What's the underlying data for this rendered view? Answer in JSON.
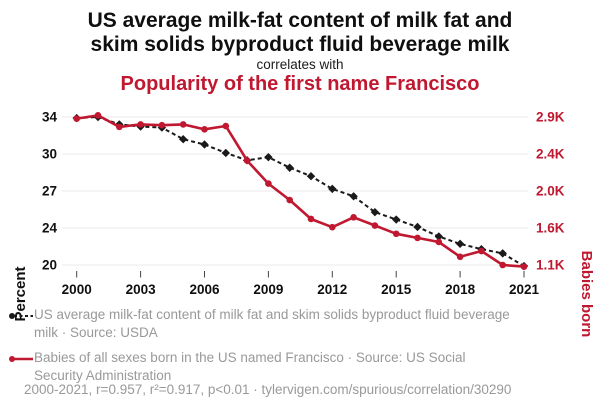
{
  "header": {
    "title": "US average milk-fat content of milk fat and\nskim solids byproduct fluid beverage milk",
    "connector": "correlates with",
    "subtitle": "Popularity of the first name Francisco"
  },
  "colors": {
    "accent_red": "#c01830",
    "text_black": "#0f0f0f",
    "text_gray": "#999999",
    "gridline": "#e8e8e8",
    "tick": "#444444"
  },
  "chart_data": {
    "type": "line",
    "x": [
      2000,
      2001,
      2002,
      2003,
      2004,
      2005,
      2006,
      2007,
      2008,
      2009,
      2010,
      2011,
      2012,
      2013,
      2014,
      2015,
      2016,
      2017,
      2018,
      2019,
      2020,
      2021
    ],
    "x_ticks": [
      2000,
      2003,
      2006,
      2009,
      2012,
      2015,
      2018,
      2021
    ],
    "x_tick_labels": [
      "2000",
      "2003",
      "2006",
      "2009",
      "2012",
      "2015",
      "2018",
      "2021"
    ],
    "grid": "horizontal-only",
    "left_axis": {
      "label": "Percent",
      "tick_labels": [
        "34",
        "30",
        "27",
        "24",
        "20"
      ],
      "max": 34,
      "min": 20,
      "color": "#111111"
    },
    "right_axis": {
      "label": "Babies born",
      "tick_labels": [
        "2.9K",
        "2.4K",
        "2.0K",
        "1.6K",
        "1.1K"
      ],
      "max": 2900,
      "min": 1100,
      "color": "#c01830"
    },
    "series": [
      {
        "name": "US average milk-fat content of milk fat and skim solids byproduct fluid beverage milk",
        "axis": "left",
        "color": "#1a1a1a",
        "style": "dashed",
        "marker": "diamond",
        "values": [
          33.9,
          34.0,
          33.3,
          33.1,
          33.0,
          31.9,
          31.4,
          30.6,
          29.9,
          30.2,
          29.2,
          28.4,
          27.2,
          26.5,
          25.0,
          24.3,
          23.6,
          22.7,
          22.0,
          21.5,
          21.1,
          19.9
        ]
      },
      {
        "name": "Babies of all sexes born in the US named Francisco",
        "axis": "right",
        "color": "#c01830",
        "style": "solid",
        "marker": "circle",
        "values": [
          2880,
          2920,
          2780,
          2810,
          2800,
          2810,
          2750,
          2790,
          2370,
          2090,
          1890,
          1660,
          1560,
          1680,
          1580,
          1480,
          1430,
          1380,
          1200,
          1270,
          1100,
          1080
        ]
      }
    ],
    "legend_position": "bottom-left"
  },
  "legend": {
    "series1_label": "US average milk-fat content of milk fat and skim solids byproduct fluid beverage\nmilk · Source: USDA",
    "series2_label": "Babies of all sexes born in the US named Francisco · Source: US Social\nSecurity Administration"
  },
  "footer": {
    "stats": "2000-2021, r=0.957, r²=0.917, p<0.01 · tylervigen.com/spurious/correlation/30290"
  }
}
